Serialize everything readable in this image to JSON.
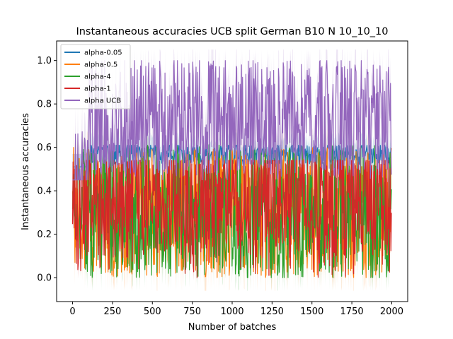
{
  "chart_data": {
    "type": "line",
    "title": "Instantaneous accuracies UCB split German B10 N 10_10_10",
    "xlabel": "Number of batches",
    "ylabel": "Instantaneous accuracies",
    "xlim": [
      -100,
      2100
    ],
    "ylim": [
      -0.11,
      1.09
    ],
    "xticks": [
      0,
      250,
      500,
      750,
      1000,
      1250,
      1500,
      1750,
      2000
    ],
    "yticks": [
      0.0,
      0.2,
      0.4,
      0.6,
      0.8,
      1.0
    ],
    "xtick_labels": [
      "0",
      "250",
      "500",
      "750",
      "1000",
      "1250",
      "1500",
      "1750",
      "2000"
    ],
    "ytick_labels": [
      "0.0",
      "0.2",
      "0.4",
      "0.6",
      "0.8",
      "1.0"
    ],
    "grid": false,
    "legend_position": "top-left",
    "n_points": 2000,
    "series": [
      {
        "name": "alpha-0.05",
        "color": "#1f77b4",
        "mean_level": 0.57,
        "low": 0.51,
        "high": 0.61,
        "band": 0.06
      },
      {
        "name": "alpha-0.5",
        "color": "#ff7f0e",
        "mean_level": 0.3,
        "low": 0.0,
        "high": 0.6,
        "band": 0.1
      },
      {
        "name": "alpha-4",
        "color": "#2ca02c",
        "mean_level": 0.3,
        "low": 0.0,
        "high": 0.62,
        "band": 0.08
      },
      {
        "name": "alpha-1",
        "color": "#d62728",
        "mean_level": 0.36,
        "low": 0.0,
        "high": 0.54,
        "band": 0.04
      },
      {
        "name": "alpha UCB",
        "color": "#9467bd",
        "mean_level": 0.74,
        "low": 0.45,
        "high": 1.0,
        "band": 0.12
      }
    ]
  }
}
